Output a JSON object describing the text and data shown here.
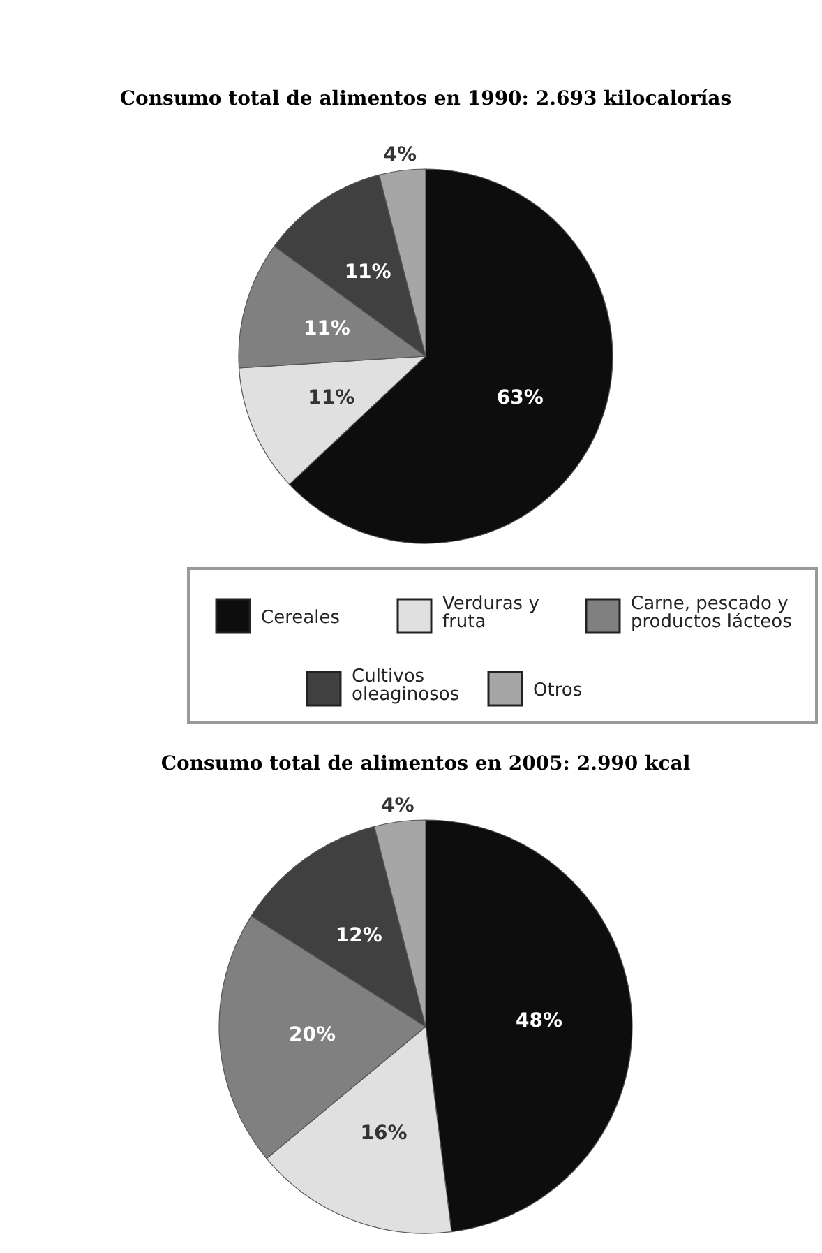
{
  "chart_data": [
    {
      "type": "pie",
      "title": "Consumo total de alimentos en 1990: 2.693 kilocalorías",
      "categories": [
        "Cereales",
        "Verduras y fruta",
        "Carne, pescado y productos lácteos",
        "Cultivos oleaginosos",
        "Otros"
      ],
      "values": [
        63,
        11,
        11,
        11,
        4
      ],
      "value_labels": [
        "63%",
        "11%",
        "11%",
        "11%",
        "4%"
      ],
      "colors": [
        "#0d0d0d",
        "#e0e0e0",
        "#808080",
        "#404040",
        "#a6a6a6"
      ],
      "legend": "bottom"
    },
    {
      "type": "pie",
      "title": "Consumo total de alimentos en 2005: 2.990 kcal",
      "categories": [
        null,
        null,
        null,
        null,
        null
      ],
      "values": [
        48,
        16,
        20,
        12,
        4
      ],
      "value_labels": [
        "48%",
        "16%",
        "20%",
        "12%",
        "4%"
      ],
      "colors": [
        "#0d0d0d",
        "#e0e0e0",
        "#808080",
        "#404040",
        "#a6a6a6"
      ]
    }
  ]
}
